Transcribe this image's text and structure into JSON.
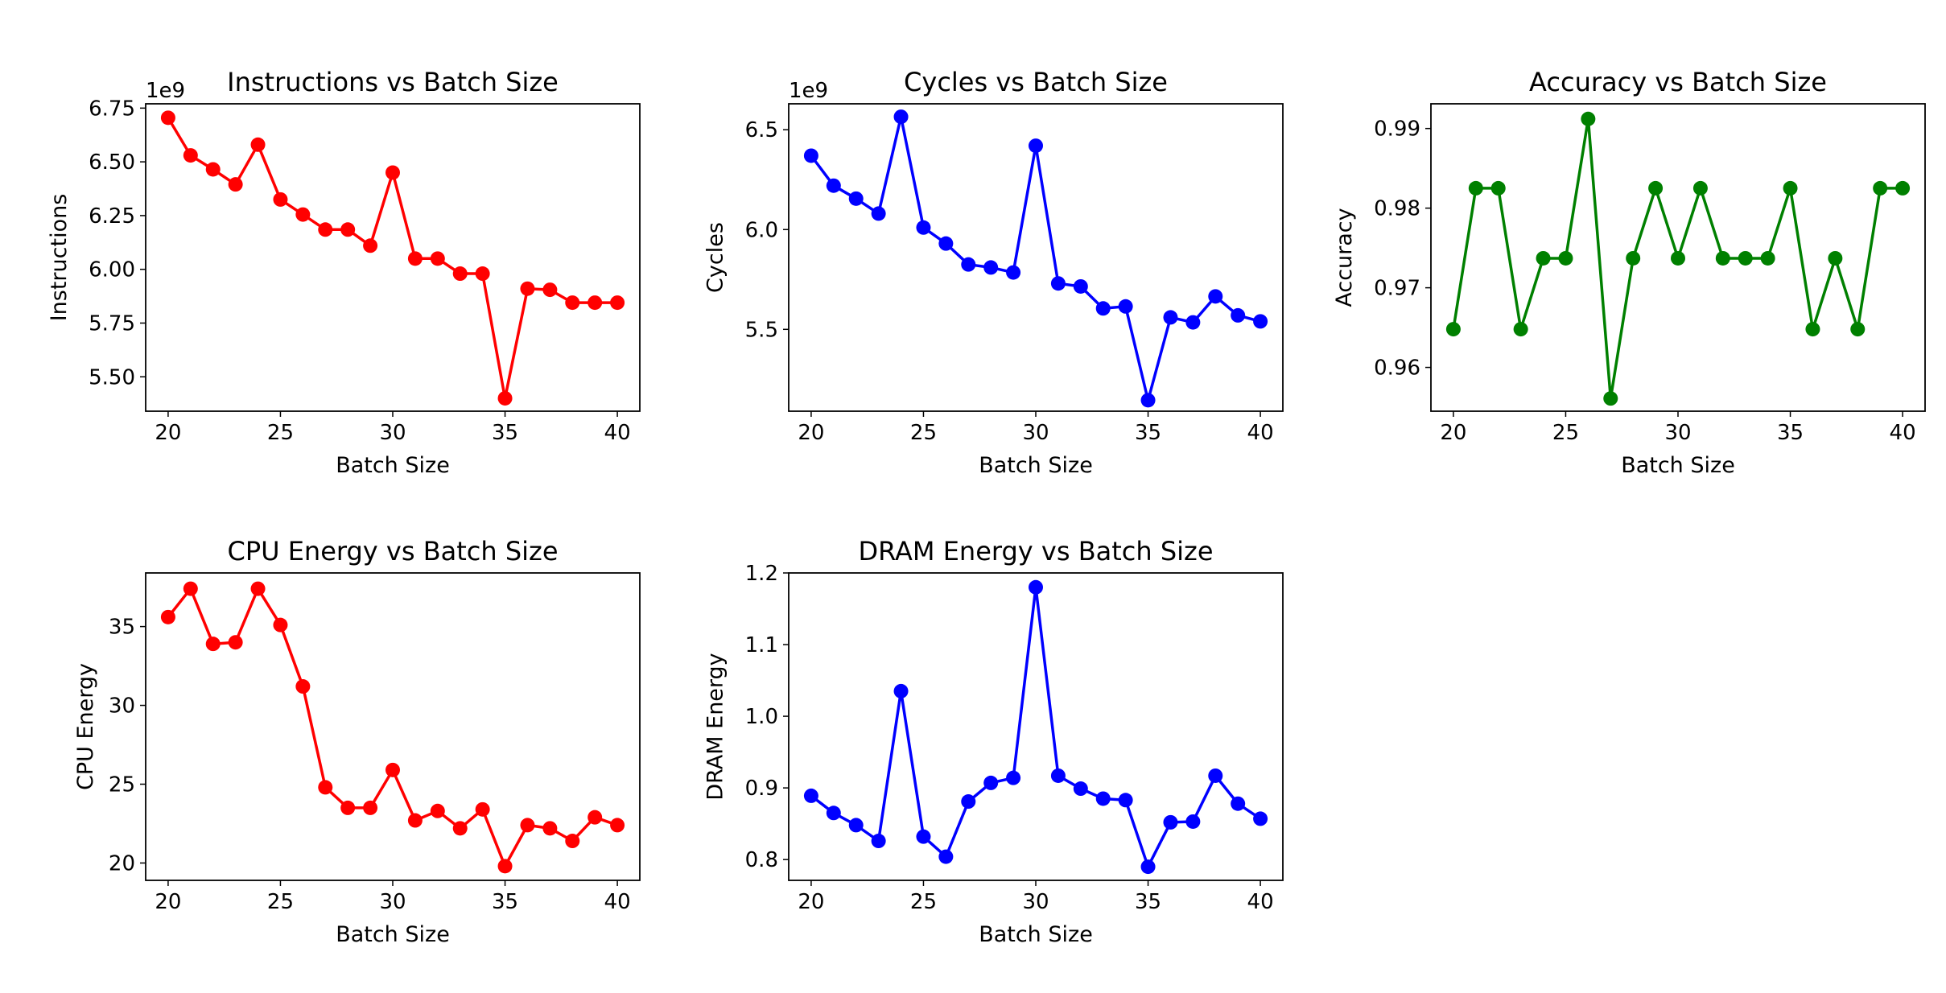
{
  "chart_data": [
    {
      "type": "line",
      "title": "Instructions vs Batch Size",
      "xlabel": "Batch Size",
      "ylabel": "Instructions",
      "y_offset_label": "1e9",
      "color": "#ff0000",
      "x": [
        20,
        21,
        22,
        23,
        24,
        25,
        26,
        27,
        28,
        29,
        30,
        31,
        32,
        33,
        34,
        35,
        36,
        37,
        38,
        39,
        40
      ],
      "values": [
        6.705,
        6.53,
        6.465,
        6.395,
        6.58,
        6.325,
        6.255,
        6.185,
        6.185,
        6.11,
        6.45,
        6.05,
        6.05,
        5.98,
        5.98,
        5.4,
        5.91,
        5.905,
        5.845,
        5.845,
        5.845
      ],
      "xlim": [
        19,
        41
      ],
      "ylim": [
        5.34,
        6.77
      ],
      "xticks": [
        20,
        25,
        30,
        35,
        40
      ],
      "xtick_labels": [
        "20",
        "25",
        "30",
        "35",
        "40"
      ],
      "yticks": [
        5.5,
        5.75,
        6.0,
        6.25,
        6.5,
        6.75
      ],
      "ytick_labels": [
        "5.50",
        "5.75",
        "6.00",
        "6.25",
        "6.50",
        "6.75"
      ]
    },
    {
      "type": "line",
      "title": "Cycles vs Batch Size",
      "xlabel": "Batch Size",
      "ylabel": "Cycles",
      "y_offset_label": "1e9",
      "color": "#0000ff",
      "x": [
        20,
        21,
        22,
        23,
        24,
        25,
        26,
        27,
        28,
        29,
        30,
        31,
        32,
        33,
        34,
        35,
        36,
        37,
        38,
        39,
        40
      ],
      "values": [
        6.37,
        6.22,
        6.155,
        6.08,
        6.565,
        6.01,
        5.93,
        5.825,
        5.81,
        5.785,
        6.42,
        5.73,
        5.715,
        5.605,
        5.615,
        5.145,
        5.56,
        5.535,
        5.665,
        5.57,
        5.54
      ],
      "xlim": [
        19,
        41
      ],
      "ylim": [
        5.09,
        6.63
      ],
      "xticks": [
        20,
        25,
        30,
        35,
        40
      ],
      "xtick_labels": [
        "20",
        "25",
        "30",
        "35",
        "40"
      ],
      "yticks": [
        5.5,
        6.0,
        6.5
      ],
      "ytick_labels": [
        "5.5",
        "6.0",
        "6.5"
      ]
    },
    {
      "type": "line",
      "title": "Accuracy vs Batch Size",
      "xlabel": "Batch Size",
      "ylabel": "Accuracy",
      "y_offset_label": "",
      "color": "#008000",
      "x": [
        20,
        21,
        22,
        23,
        24,
        25,
        26,
        27,
        28,
        29,
        30,
        31,
        32,
        33,
        34,
        35,
        36,
        37,
        38,
        39,
        40
      ],
      "values": [
        0.9648,
        0.9825,
        0.9825,
        0.9648,
        0.9737,
        0.9737,
        0.9912,
        0.9561,
        0.9737,
        0.9825,
        0.9737,
        0.9825,
        0.9737,
        0.9737,
        0.9737,
        0.9825,
        0.9648,
        0.9737,
        0.9648,
        0.9825,
        0.9825
      ],
      "xlim": [
        19,
        41
      ],
      "ylim": [
        0.9545,
        0.9931
      ],
      "xticks": [
        20,
        25,
        30,
        35,
        40
      ],
      "xtick_labels": [
        "20",
        "25",
        "30",
        "35",
        "40"
      ],
      "yticks": [
        0.96,
        0.97,
        0.98,
        0.99
      ],
      "ytick_labels": [
        "0.96",
        "0.97",
        "0.98",
        "0.99"
      ]
    },
    {
      "type": "line",
      "title": "CPU Energy vs Batch Size",
      "xlabel": "Batch Size",
      "ylabel": "CPU Energy",
      "y_offset_label": "",
      "color": "#ff0000",
      "x": [
        20,
        21,
        22,
        23,
        24,
        25,
        26,
        27,
        28,
        29,
        30,
        31,
        32,
        33,
        34,
        35,
        36,
        37,
        38,
        39,
        40
      ],
      "values": [
        35.6,
        37.4,
        33.9,
        34.0,
        37.4,
        35.1,
        31.2,
        24.8,
        23.5,
        23.5,
        25.9,
        22.7,
        23.3,
        22.2,
        23.4,
        19.8,
        22.4,
        22.2,
        21.4,
        22.9,
        22.4
      ],
      "xlim": [
        19,
        41
      ],
      "ylim": [
        18.9,
        38.4
      ],
      "xticks": [
        20,
        25,
        30,
        35,
        40
      ],
      "xtick_labels": [
        "20",
        "25",
        "30",
        "35",
        "40"
      ],
      "yticks": [
        20,
        25,
        30,
        35
      ],
      "ytick_labels": [
        "20",
        "25",
        "30",
        "35"
      ]
    },
    {
      "type": "line",
      "title": "DRAM Energy vs Batch Size",
      "xlabel": "Batch Size",
      "ylabel": "DRAM Energy",
      "y_offset_label": "",
      "color": "#0000ff",
      "x": [
        20,
        21,
        22,
        23,
        24,
        25,
        26,
        27,
        28,
        29,
        30,
        31,
        32,
        33,
        34,
        35,
        36,
        37,
        38,
        39,
        40
      ],
      "values": [
        0.889,
        0.865,
        0.848,
        0.826,
        1.035,
        0.832,
        0.804,
        0.881,
        0.907,
        0.914,
        1.18,
        0.917,
        0.899,
        0.885,
        0.883,
        0.79,
        0.852,
        0.853,
        0.917,
        0.878,
        0.857
      ],
      "xlim": [
        19,
        41
      ],
      "ylim": [
        0.771,
        1.2
      ],
      "xticks": [
        20,
        25,
        30,
        35,
        40
      ],
      "xtick_labels": [
        "20",
        "25",
        "30",
        "35",
        "40"
      ],
      "yticks": [
        0.8,
        0.9,
        1.0,
        1.1,
        1.2
      ],
      "ytick_labels": [
        "0.8",
        "0.9",
        "1.0",
        "1.1",
        "1.2"
      ]
    }
  ]
}
